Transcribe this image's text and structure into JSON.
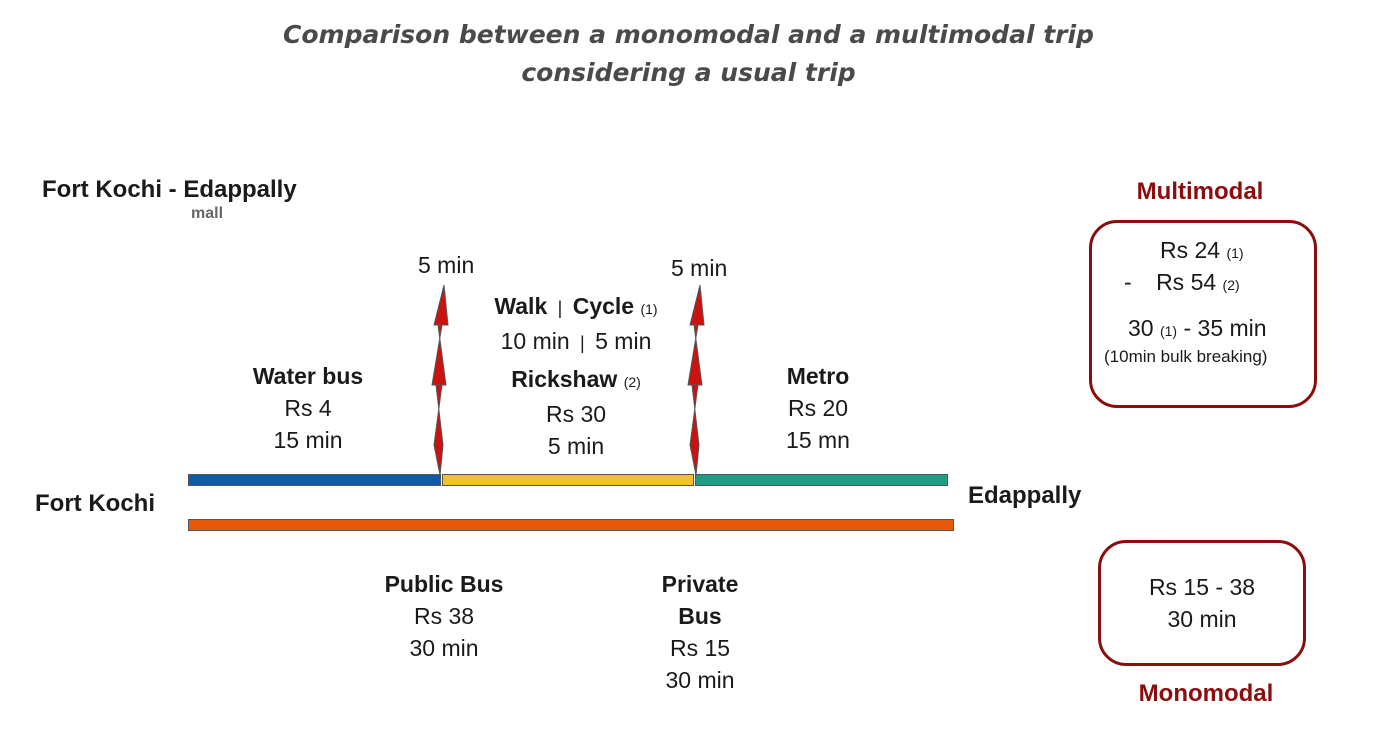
{
  "title": {
    "line1": "Comparison between a monomodal and a multimodal trip",
    "line2": "considering a usual trip"
  },
  "route": {
    "title": "Fort Kochi - Edappally",
    "subtitle": "mall",
    "origin": "Fort Kochi",
    "destination": "Edappally"
  },
  "transfers": [
    "5 min",
    "5 min"
  ],
  "multimodal_segments": [
    {
      "mode": "Water bus",
      "cost": "Rs 4",
      "time": "15 min",
      "color": "#0e5aa7"
    },
    {
      "mode_a": "Walk",
      "sep": "|",
      "mode_b": "Cycle",
      "note_a": "(1)",
      "time_a": "10 min",
      "time_b": "5 min",
      "mode_c": "Rickshaw",
      "note_c": "(2)",
      "cost": "Rs 30",
      "time": "5 min",
      "color": "#f2c12e"
    },
    {
      "mode": "Metro",
      "cost": "Rs 20",
      "time": "15 mn",
      "color": "#1f9e84"
    }
  ],
  "monomodal": {
    "color": "#e8590c",
    "options": [
      {
        "mode": "Public Bus",
        "cost": "Rs 38",
        "time": "30 min"
      },
      {
        "mode_line1": "Private",
        "mode_line2": "Bus",
        "cost": "Rs 15",
        "time": "30 min"
      }
    ]
  },
  "summary": {
    "multimodal": {
      "label": "Multimodal",
      "cost1": "Rs 24",
      "note1": "(1)",
      "dash": "-",
      "cost2": "Rs 54",
      "note2": "(2)",
      "time_a": "30",
      "note_t": "(1)",
      "time_b": "- 35 min",
      "extra": "(10min bulk breaking)"
    },
    "monomodal": {
      "label": "Monomodal",
      "cost": "Rs 15 - 38",
      "time": "30 min"
    }
  },
  "colors": {
    "accent": "#8b0d0d",
    "transfer_bolt": "#cc1111"
  }
}
